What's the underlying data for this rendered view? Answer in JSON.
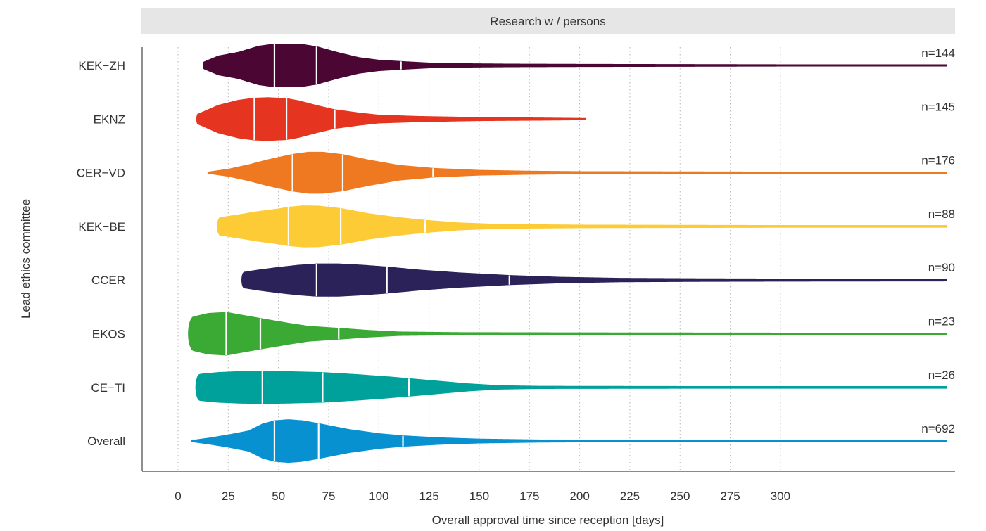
{
  "chart_data": {
    "type": "violin",
    "panel_title": "Research w / persons",
    "xlabel": "Overall approval time since reception [days]",
    "ylabel": "Lead ethics committee",
    "xlim": [
      -18,
      383
    ],
    "x_ticks": [
      0,
      25,
      50,
      75,
      100,
      125,
      150,
      175,
      200,
      225,
      250,
      275,
      300
    ],
    "orientation": "horizontal",
    "grid": "vertical dotted at x ticks",
    "series": [
      {
        "name": "KEK−ZH",
        "n_label": "n=144",
        "color": "#4b0633",
        "quantiles": [
          48,
          69,
          111
        ],
        "density": [
          [
            13,
            0.18
          ],
          [
            20,
            0.45
          ],
          [
            30,
            0.62
          ],
          [
            40,
            0.9
          ],
          [
            48,
            1.0
          ],
          [
            55,
            1.0
          ],
          [
            62,
            0.98
          ],
          [
            69,
            0.88
          ],
          [
            80,
            0.6
          ],
          [
            90,
            0.38
          ],
          [
            100,
            0.26
          ],
          [
            111,
            0.2
          ],
          [
            125,
            0.13
          ],
          [
            140,
            0.1
          ],
          [
            165,
            0.08
          ],
          [
            200,
            0.07
          ],
          [
            250,
            0.06
          ],
          [
            300,
            0.05
          ],
          [
            383,
            0.05
          ]
        ]
      },
      {
        "name": "EKNZ",
        "n_label": "n=145",
        "color": "#e5341f",
        "quantiles": [
          38,
          54,
          78
        ],
        "density": [
          [
            10,
            0.25
          ],
          [
            20,
            0.65
          ],
          [
            30,
            0.88
          ],
          [
            38,
            0.98
          ],
          [
            45,
            1.0
          ],
          [
            54,
            0.96
          ],
          [
            60,
            0.86
          ],
          [
            70,
            0.62
          ],
          [
            78,
            0.45
          ],
          [
            90,
            0.3
          ],
          [
            100,
            0.2
          ],
          [
            120,
            0.14
          ],
          [
            150,
            0.09
          ],
          [
            180,
            0.07
          ],
          [
            203,
            0.05
          ]
        ]
      },
      {
        "name": "CER−VD",
        "n_label": "n=176",
        "color": "#ef7920",
        "quantiles": [
          57,
          82,
          127
        ],
        "density": [
          [
            15,
            0.05
          ],
          [
            25,
            0.18
          ],
          [
            35,
            0.38
          ],
          [
            45,
            0.62
          ],
          [
            57,
            0.86
          ],
          [
            65,
            0.96
          ],
          [
            72,
            0.96
          ],
          [
            82,
            0.85
          ],
          [
            95,
            0.6
          ],
          [
            110,
            0.36
          ],
          [
            127,
            0.22
          ],
          [
            150,
            0.13
          ],
          [
            175,
            0.09
          ],
          [
            200,
            0.07
          ],
          [
            250,
            0.06
          ],
          [
            300,
            0.05
          ],
          [
            383,
            0.05
          ]
        ]
      },
      {
        "name": "KEK−BE",
        "n_label": "n=88",
        "color": "#fdcb35",
        "quantiles": [
          55,
          81,
          123
        ],
        "density": [
          [
            21,
            0.42
          ],
          [
            30,
            0.55
          ],
          [
            40,
            0.7
          ],
          [
            50,
            0.82
          ],
          [
            55,
            0.9
          ],
          [
            62,
            0.96
          ],
          [
            70,
            0.95
          ],
          [
            81,
            0.84
          ],
          [
            95,
            0.6
          ],
          [
            110,
            0.42
          ],
          [
            123,
            0.3
          ],
          [
            140,
            0.18
          ],
          [
            160,
            0.11
          ],
          [
            200,
            0.08
          ],
          [
            250,
            0.07
          ],
          [
            300,
            0.06
          ],
          [
            383,
            0.06
          ]
        ]
      },
      {
        "name": "CCER",
        "n_label": "n=90",
        "color": "#2b2259",
        "quantiles": [
          69,
          104,
          165
        ],
        "density": [
          [
            33,
            0.38
          ],
          [
            40,
            0.48
          ],
          [
            50,
            0.6
          ],
          [
            60,
            0.7
          ],
          [
            69,
            0.76
          ],
          [
            80,
            0.76
          ],
          [
            92,
            0.7
          ],
          [
            104,
            0.62
          ],
          [
            120,
            0.48
          ],
          [
            140,
            0.35
          ],
          [
            165,
            0.23
          ],
          [
            190,
            0.15
          ],
          [
            220,
            0.1
          ],
          [
            260,
            0.08
          ],
          [
            300,
            0.07
          ],
          [
            383,
            0.06
          ]
        ]
      },
      {
        "name": "EKOS",
        "n_label": "n=23",
        "color": "#3aaa35",
        "quantiles": [
          24,
          41,
          80
        ],
        "density": [
          [
            8,
            0.8
          ],
          [
            15,
            0.95
          ],
          [
            24,
            1.0
          ],
          [
            30,
            0.9
          ],
          [
            41,
            0.72
          ],
          [
            55,
            0.5
          ],
          [
            65,
            0.36
          ],
          [
            80,
            0.27
          ],
          [
            95,
            0.17
          ],
          [
            110,
            0.1
          ],
          [
            140,
            0.07
          ],
          [
            200,
            0.06
          ],
          [
            300,
            0.05
          ],
          [
            383,
            0.05
          ]
        ]
      },
      {
        "name": "CE−TI",
        "n_label": "n=26",
        "color": "#00a19a",
        "quantiles": [
          42,
          72,
          115
        ],
        "density": [
          [
            11,
            0.62
          ],
          [
            20,
            0.7
          ],
          [
            30,
            0.74
          ],
          [
            42,
            0.76
          ],
          [
            55,
            0.74
          ],
          [
            72,
            0.7
          ],
          [
            90,
            0.6
          ],
          [
            105,
            0.5
          ],
          [
            115,
            0.42
          ],
          [
            130,
            0.3
          ],
          [
            145,
            0.18
          ],
          [
            160,
            0.1
          ],
          [
            180,
            0.07
          ],
          [
            250,
            0.06
          ],
          [
            383,
            0.06
          ]
        ]
      },
      {
        "name": "Overall",
        "n_label": "n=692",
        "color": "#0891d1",
        "quantiles": [
          48,
          70,
          112
        ],
        "density": [
          [
            7,
            0.05
          ],
          [
            15,
            0.15
          ],
          [
            25,
            0.3
          ],
          [
            35,
            0.48
          ],
          [
            42,
            0.8
          ],
          [
            48,
            0.95
          ],
          [
            55,
            1.0
          ],
          [
            62,
            0.95
          ],
          [
            70,
            0.82
          ],
          [
            85,
            0.55
          ],
          [
            100,
            0.36
          ],
          [
            112,
            0.26
          ],
          [
            130,
            0.17
          ],
          [
            150,
            0.11
          ],
          [
            180,
            0.07
          ],
          [
            220,
            0.05
          ],
          [
            300,
            0.04
          ],
          [
            383,
            0.04
          ]
        ]
      }
    ]
  }
}
